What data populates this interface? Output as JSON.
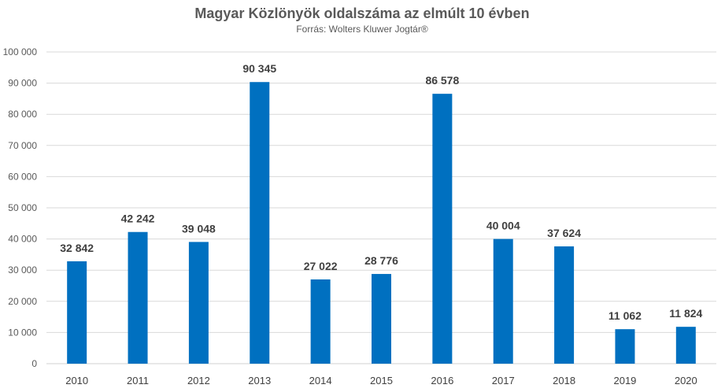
{
  "chart_data": {
    "type": "bar",
    "title": "Magyar Közlönyök oldalszáma az elmúlt 10 évben",
    "subtitle": "Forrás: Wolters Kluwer Jogtár®",
    "categories": [
      "2010",
      "2011",
      "2012",
      "2013",
      "2014",
      "2015",
      "2016",
      "2017",
      "2018",
      "2019",
      "2020"
    ],
    "values": [
      32842,
      42242,
      39048,
      90345,
      27022,
      28776,
      86578,
      40004,
      37624,
      11062,
      11824
    ],
    "data_labels": [
      "32 842",
      "42 242",
      "39 048",
      "90 345",
      "27 022",
      "28 776",
      "86 578",
      "40 004",
      "37 624",
      "11 062",
      "11 824"
    ],
    "xlabel": "",
    "ylabel": "",
    "ylim": [
      0,
      100000
    ],
    "yticks": [
      0,
      10000,
      20000,
      30000,
      40000,
      50000,
      60000,
      70000,
      80000,
      90000,
      100000
    ],
    "ytick_labels": [
      "0",
      "10 000",
      "20 000",
      "30 000",
      "40 000",
      "50 000",
      "60 000",
      "70 000",
      "80 000",
      "90 000",
      "100 000"
    ],
    "grid": true,
    "legend": "none",
    "bar_color": "#0070C0"
  }
}
